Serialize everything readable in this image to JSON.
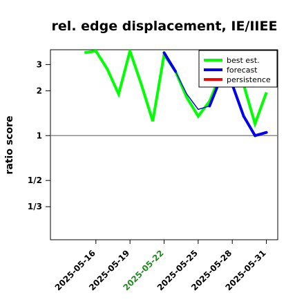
{
  "chart_data": {
    "type": "line",
    "title": "rel. edge displacement, IE/IIEE",
    "xlabel": "",
    "ylabel": "ratio score",
    "y_scale": "log",
    "ylim": [
      0.2,
      3.77
    ],
    "xlim": [
      "2025-05-12",
      "2025-06-01"
    ],
    "x_tick_labels": [
      "2025-05-16",
      "2025-05-19",
      "2025-05-22",
      "2025-05-25",
      "2025-05-28",
      "2025-05-31"
    ],
    "x_tick_colors": [
      "#000000",
      "#000000",
      "#228B22",
      "#000000",
      "#000000",
      "#000000"
    ],
    "y_tick_labels": [
      "3",
      "2",
      "1",
      "1/2",
      "1/3"
    ],
    "y_tick_values": [
      3,
      2,
      1,
      0.5,
      0.3333
    ],
    "reference_line": 1,
    "grid": false,
    "legend_position": "top-right",
    "series": [
      {
        "name": "best est.",
        "color": "#00ff00",
        "x": [
          "2025-05-15",
          "2025-05-16",
          "2025-05-17",
          "2025-05-18",
          "2025-05-19",
          "2025-05-20",
          "2025-05-21",
          "2025-05-22",
          "2025-05-23",
          "2025-05-24",
          "2025-05-25",
          "2025-05-26",
          "2025-05-27",
          "2025-05-28",
          "2025-05-29",
          "2025-05-30",
          "2025-05-31"
        ],
        "values": [
          3.6,
          3.7,
          2.8,
          1.9,
          3.7,
          2.2,
          1.25,
          3.5,
          2.7,
          1.8,
          1.35,
          1.7,
          2.6,
          2.45,
          2.2,
          1.2,
          1.95
        ]
      },
      {
        "name": "forecast",
        "color": "#0000ee",
        "x": [
          "2025-05-22",
          "2025-05-23",
          "2025-05-24",
          "2025-05-25",
          "2025-05-26",
          "2025-05-27",
          "2025-05-28",
          "2025-05-29",
          "2025-05-30",
          "2025-05-31"
        ],
        "values": [
          3.6,
          2.7,
          1.9,
          1.5,
          1.58,
          2.45,
          2.2,
          1.35,
          1.0,
          1.05
        ]
      },
      {
        "name": "persistence",
        "color": "#ff0000",
        "x": [],
        "values": []
      }
    ]
  }
}
